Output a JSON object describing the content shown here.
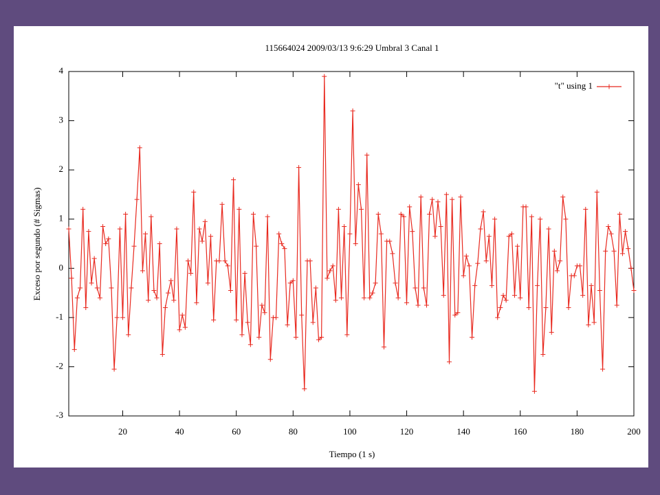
{
  "chart_data": {
    "type": "line",
    "title": "115664024 2009/03/13 9:6:29 Umbral 3 Canal 1",
    "xlabel": "Tiempo (1 s)",
    "ylabel": "Exceso por segundo (# Sigmas)",
    "xlim": [
      1,
      200
    ],
    "ylim": [
      -3,
      4
    ],
    "xticks": [
      20,
      40,
      60,
      80,
      100,
      120,
      140,
      160,
      180,
      200
    ],
    "yticks": [
      -3,
      -2,
      -1,
      0,
      1,
      2,
      3,
      4
    ],
    "legend": "top-right",
    "x": [
      1,
      2,
      3,
      4,
      5,
      6,
      7,
      8,
      9,
      10,
      11,
      12,
      13,
      14,
      15,
      16,
      17,
      18,
      19,
      20,
      21,
      22,
      23,
      24,
      25,
      26,
      27,
      28,
      29,
      30,
      31,
      32,
      33,
      34,
      35,
      36,
      37,
      38,
      39,
      40,
      41,
      42,
      43,
      44,
      45,
      46,
      47,
      48,
      49,
      50,
      51,
      52,
      53,
      54,
      55,
      56,
      57,
      58,
      59,
      60,
      61,
      62,
      63,
      64,
      65,
      66,
      67,
      68,
      69,
      70,
      71,
      72,
      73,
      74,
      75,
      76,
      77,
      78,
      79,
      80,
      81,
      82,
      83,
      84,
      85,
      86,
      87,
      88,
      89,
      90,
      91,
      92,
      93,
      94,
      95,
      96,
      97,
      98,
      99,
      100,
      101,
      102,
      103,
      104,
      105,
      106,
      107,
      108,
      109,
      110,
      111,
      112,
      113,
      114,
      115,
      116,
      117,
      118,
      119,
      120,
      121,
      122,
      123,
      124,
      125,
      126,
      127,
      128,
      129,
      130,
      131,
      132,
      133,
      134,
      135,
      136,
      137,
      138,
      139,
      140,
      141,
      142,
      143,
      144,
      145,
      146,
      147,
      148,
      149,
      150,
      151,
      152,
      153,
      154,
      155,
      156,
      157,
      158,
      159,
      160,
      161,
      162,
      163,
      164,
      165,
      166,
      167,
      168,
      169,
      170,
      171,
      172,
      173,
      174,
      175,
      176,
      177,
      178,
      179,
      180,
      181,
      182,
      183,
      184,
      185,
      186,
      187,
      188,
      189,
      190,
      191,
      192,
      193,
      194,
      195,
      196,
      197,
      198,
      199,
      200
    ],
    "series": [
      {
        "name": "\"t\" using 1",
        "color": "#e8281e",
        "values": [
          0.8,
          -0.2,
          -1.65,
          -0.6,
          -0.4,
          1.2,
          -0.8,
          0.75,
          -0.3,
          0.2,
          -0.4,
          -0.6,
          0.85,
          0.5,
          0.6,
          -0.4,
          -2.05,
          -1.0,
          0.8,
          -1.0,
          1.1,
          -1.35,
          -0.4,
          0.45,
          1.4,
          2.45,
          -0.05,
          0.7,
          -0.65,
          1.05,
          -0.45,
          -0.6,
          0.5,
          -1.75,
          -0.8,
          -0.5,
          -0.25,
          -0.65,
          0.8,
          -1.25,
          -0.95,
          -1.2,
          0.15,
          -0.1,
          1.55,
          -0.7,
          0.8,
          0.55,
          0.95,
          -0.3,
          0.65,
          -1.05,
          0.15,
          0.15,
          1.3,
          0.15,
          0.05,
          -0.45,
          1.8,
          -1.05,
          1.2,
          -1.35,
          -0.1,
          -1.1,
          -1.55,
          1.1,
          0.45,
          -1.4,
          -0.75,
          -0.9,
          1.05,
          -1.85,
          -1.0,
          -1.0,
          0.7,
          0.5,
          0.4,
          -1.15,
          -0.3,
          -0.25,
          -1.4,
          2.05,
          -0.95,
          -2.45,
          0.15,
          0.15,
          -1.1,
          -0.4,
          -1.45,
          -1.4,
          3.9,
          -0.2,
          -0.05,
          0.05,
          -0.65,
          1.2,
          -0.6,
          0.85,
          -1.35,
          0.7,
          3.2,
          0.5,
          1.7,
          1.2,
          -0.6,
          2.3,
          -0.6,
          -0.5,
          -0.3,
          1.1,
          0.7,
          -1.6,
          0.55,
          0.55,
          0.3,
          -0.3,
          -0.6,
          1.1,
          1.05,
          -0.7,
          1.25,
          0.75,
          -0.4,
          -0.75,
          1.45,
          -0.4,
          -0.75,
          1.1,
          1.4,
          0.65,
          1.35,
          0.85,
          -0.55,
          1.5,
          -1.9,
          1.4,
          -0.95,
          -0.9,
          1.45,
          -0.15,
          0.25,
          0.05,
          -1.4,
          -0.35,
          0.1,
          0.8,
          1.15,
          0.15,
          0.65,
          -0.35,
          1.0,
          -1.0,
          -0.8,
          -0.55,
          -0.65,
          0.65,
          0.7,
          -0.55,
          0.45,
          -0.6,
          1.25,
          1.25,
          -0.8,
          1.05,
          -2.5,
          -0.35,
          1.0,
          -1.75,
          -0.8,
          0.8,
          -1.3,
          0.35,
          -0.05,
          0.15,
          1.45,
          1.0,
          -0.8,
          -0.15,
          -0.15,
          0.05,
          0.05,
          -0.55,
          1.2,
          -1.15,
          -0.35,
          -1.1,
          1.55,
          -0.45,
          -2.05,
          0.35,
          0.85,
          0.7,
          0.35,
          -0.75,
          1.1,
          0.3,
          0.75,
          0.4,
          0.0,
          -0.45
        ]
      }
    ]
  }
}
